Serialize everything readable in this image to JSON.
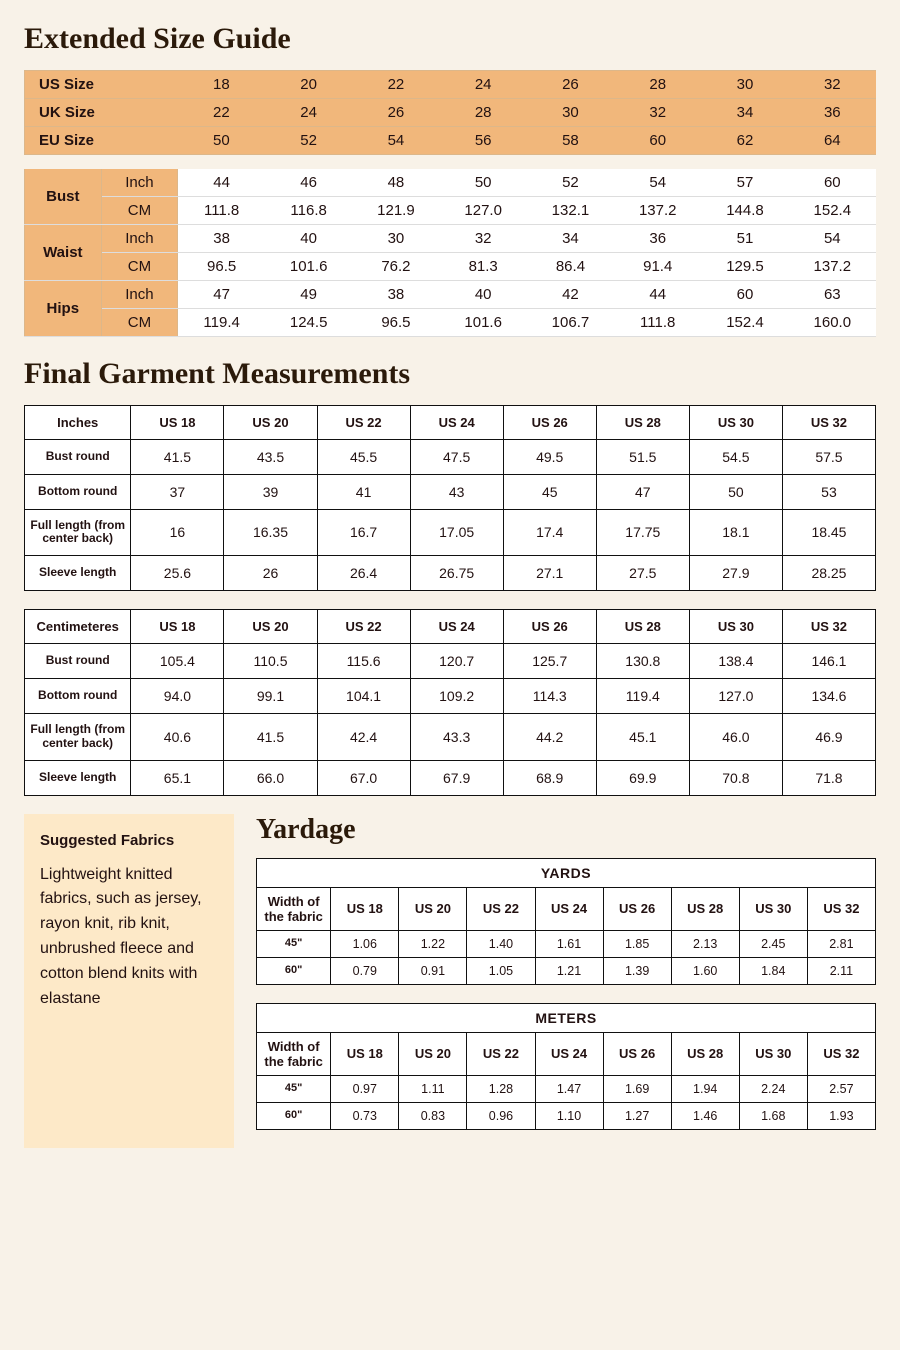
{
  "colors": {
    "page_bg": "#f8f2e8",
    "header_bg": "#f1b77b",
    "header_border": "#dcb78a",
    "cell_bg": "#fff",
    "cell_border": "#111",
    "fabric_box_bg": "#fde9c8",
    "text": "#211"
  },
  "typography": {
    "title_fontsize": 30,
    "subtitle_fontsize": 28,
    "table_fontsize": 14
  },
  "titles": {
    "extended": "Extended Size Guide",
    "final": "Final Garment Measurements",
    "yardage": "Yardage"
  },
  "size_guide": {
    "size_rows": [
      {
        "label": "US Size",
        "values": [
          "18",
          "20",
          "22",
          "24",
          "26",
          "28",
          "30",
          "32"
        ]
      },
      {
        "label": "UK Size",
        "values": [
          "22",
          "24",
          "26",
          "28",
          "30",
          "32",
          "34",
          "36"
        ]
      },
      {
        "label": "EU Size",
        "values": [
          "50",
          "52",
          "54",
          "56",
          "58",
          "60",
          "62",
          "64"
        ]
      }
    ],
    "body_parts": [
      {
        "name": "Bust",
        "units": [
          {
            "u": "Inch",
            "vals": [
              "44",
              "46",
              "48",
              "50",
              "52",
              "54",
              "57",
              "60"
            ]
          },
          {
            "u": "CM",
            "vals": [
              "111.8",
              "116.8",
              "121.9",
              "127.0",
              "132.1",
              "137.2",
              "144.8",
              "152.4"
            ]
          }
        ]
      },
      {
        "name": "Waist",
        "units": [
          {
            "u": "Inch",
            "vals": [
              "38",
              "40",
              "30",
              "32",
              "34",
              "36",
              "51",
              "54"
            ]
          },
          {
            "u": "CM",
            "vals": [
              "96.5",
              "101.6",
              "76.2",
              "81.3",
              "86.4",
              "91.4",
              "129.5",
              "137.2"
            ]
          }
        ]
      },
      {
        "name": "Hips",
        "units": [
          {
            "u": "Inch",
            "vals": [
              "47",
              "49",
              "38",
              "40",
              "42",
              "44",
              "60",
              "63"
            ]
          },
          {
            "u": "CM",
            "vals": [
              "119.4",
              "124.5",
              "96.5",
              "101.6",
              "106.7",
              "111.8",
              "152.4",
              "160.0"
            ]
          }
        ]
      }
    ]
  },
  "us_sizes": [
    "US 18",
    "US 20",
    "US 22",
    "US 24",
    "US 26",
    "US 28",
    "US 30",
    "US 32"
  ],
  "garment_inches": {
    "corner": "Inches",
    "rows": [
      {
        "label": "Bust round",
        "vals": [
          "41.5",
          "43.5",
          "45.5",
          "47.5",
          "49.5",
          "51.5",
          "54.5",
          "57.5"
        ]
      },
      {
        "label": "Bottom round",
        "vals": [
          "37",
          "39",
          "41",
          "43",
          "45",
          "47",
          "50",
          "53"
        ]
      },
      {
        "label": "Full length (from center back)",
        "vals": [
          "16",
          "16.35",
          "16.7",
          "17.05",
          "17.4",
          "17.75",
          "18.1",
          "18.45"
        ]
      },
      {
        "label": "Sleeve length",
        "vals": [
          "25.6",
          "26",
          "26.4",
          "26.75",
          "27.1",
          "27.5",
          "27.9",
          "28.25"
        ]
      }
    ]
  },
  "garment_cm": {
    "corner": "Centimeteres",
    "rows": [
      {
        "label": "Bust round",
        "vals": [
          "105.4",
          "110.5",
          "115.6",
          "120.7",
          "125.7",
          "130.8",
          "138.4",
          "146.1"
        ]
      },
      {
        "label": "Bottom round",
        "vals": [
          "94.0",
          "99.1",
          "104.1",
          "109.2",
          "114.3",
          "119.4",
          "127.0",
          "134.6"
        ]
      },
      {
        "label": "Full length (from center back)",
        "vals": [
          "40.6",
          "41.5",
          "42.4",
          "43.3",
          "44.2",
          "45.1",
          "46.0",
          "46.9"
        ]
      },
      {
        "label": "Sleeve length",
        "vals": [
          "65.1",
          "66.0",
          "67.0",
          "67.9",
          "68.9",
          "69.9",
          "70.8",
          "71.8"
        ]
      }
    ]
  },
  "fabrics": {
    "heading": "Suggested Fabrics",
    "body": "Lightweight knitted fabrics, such as jersey, rayon knit, rib knit, unbrushed fleece and cotton blend knits with elastane"
  },
  "yardage": {
    "width_label": "Width of the fabric",
    "super_yards": "YARDS",
    "super_meters": "METERS",
    "widths": [
      "45\"",
      "60\""
    ],
    "yards_rows": [
      [
        "1.06",
        "1.22",
        "1.40",
        "1.61",
        "1.85",
        "2.13",
        "2.45",
        "2.81"
      ],
      [
        "0.79",
        "0.91",
        "1.05",
        "1.21",
        "1.39",
        "1.60",
        "1.84",
        "2.11"
      ]
    ],
    "meters_rows": [
      [
        "0.97",
        "1.11",
        "1.28",
        "1.47",
        "1.69",
        "1.94",
        "2.24",
        "2.57"
      ],
      [
        "0.73",
        "0.83",
        "0.96",
        "1.10",
        "1.27",
        "1.46",
        "1.68",
        "1.93"
      ]
    ]
  }
}
